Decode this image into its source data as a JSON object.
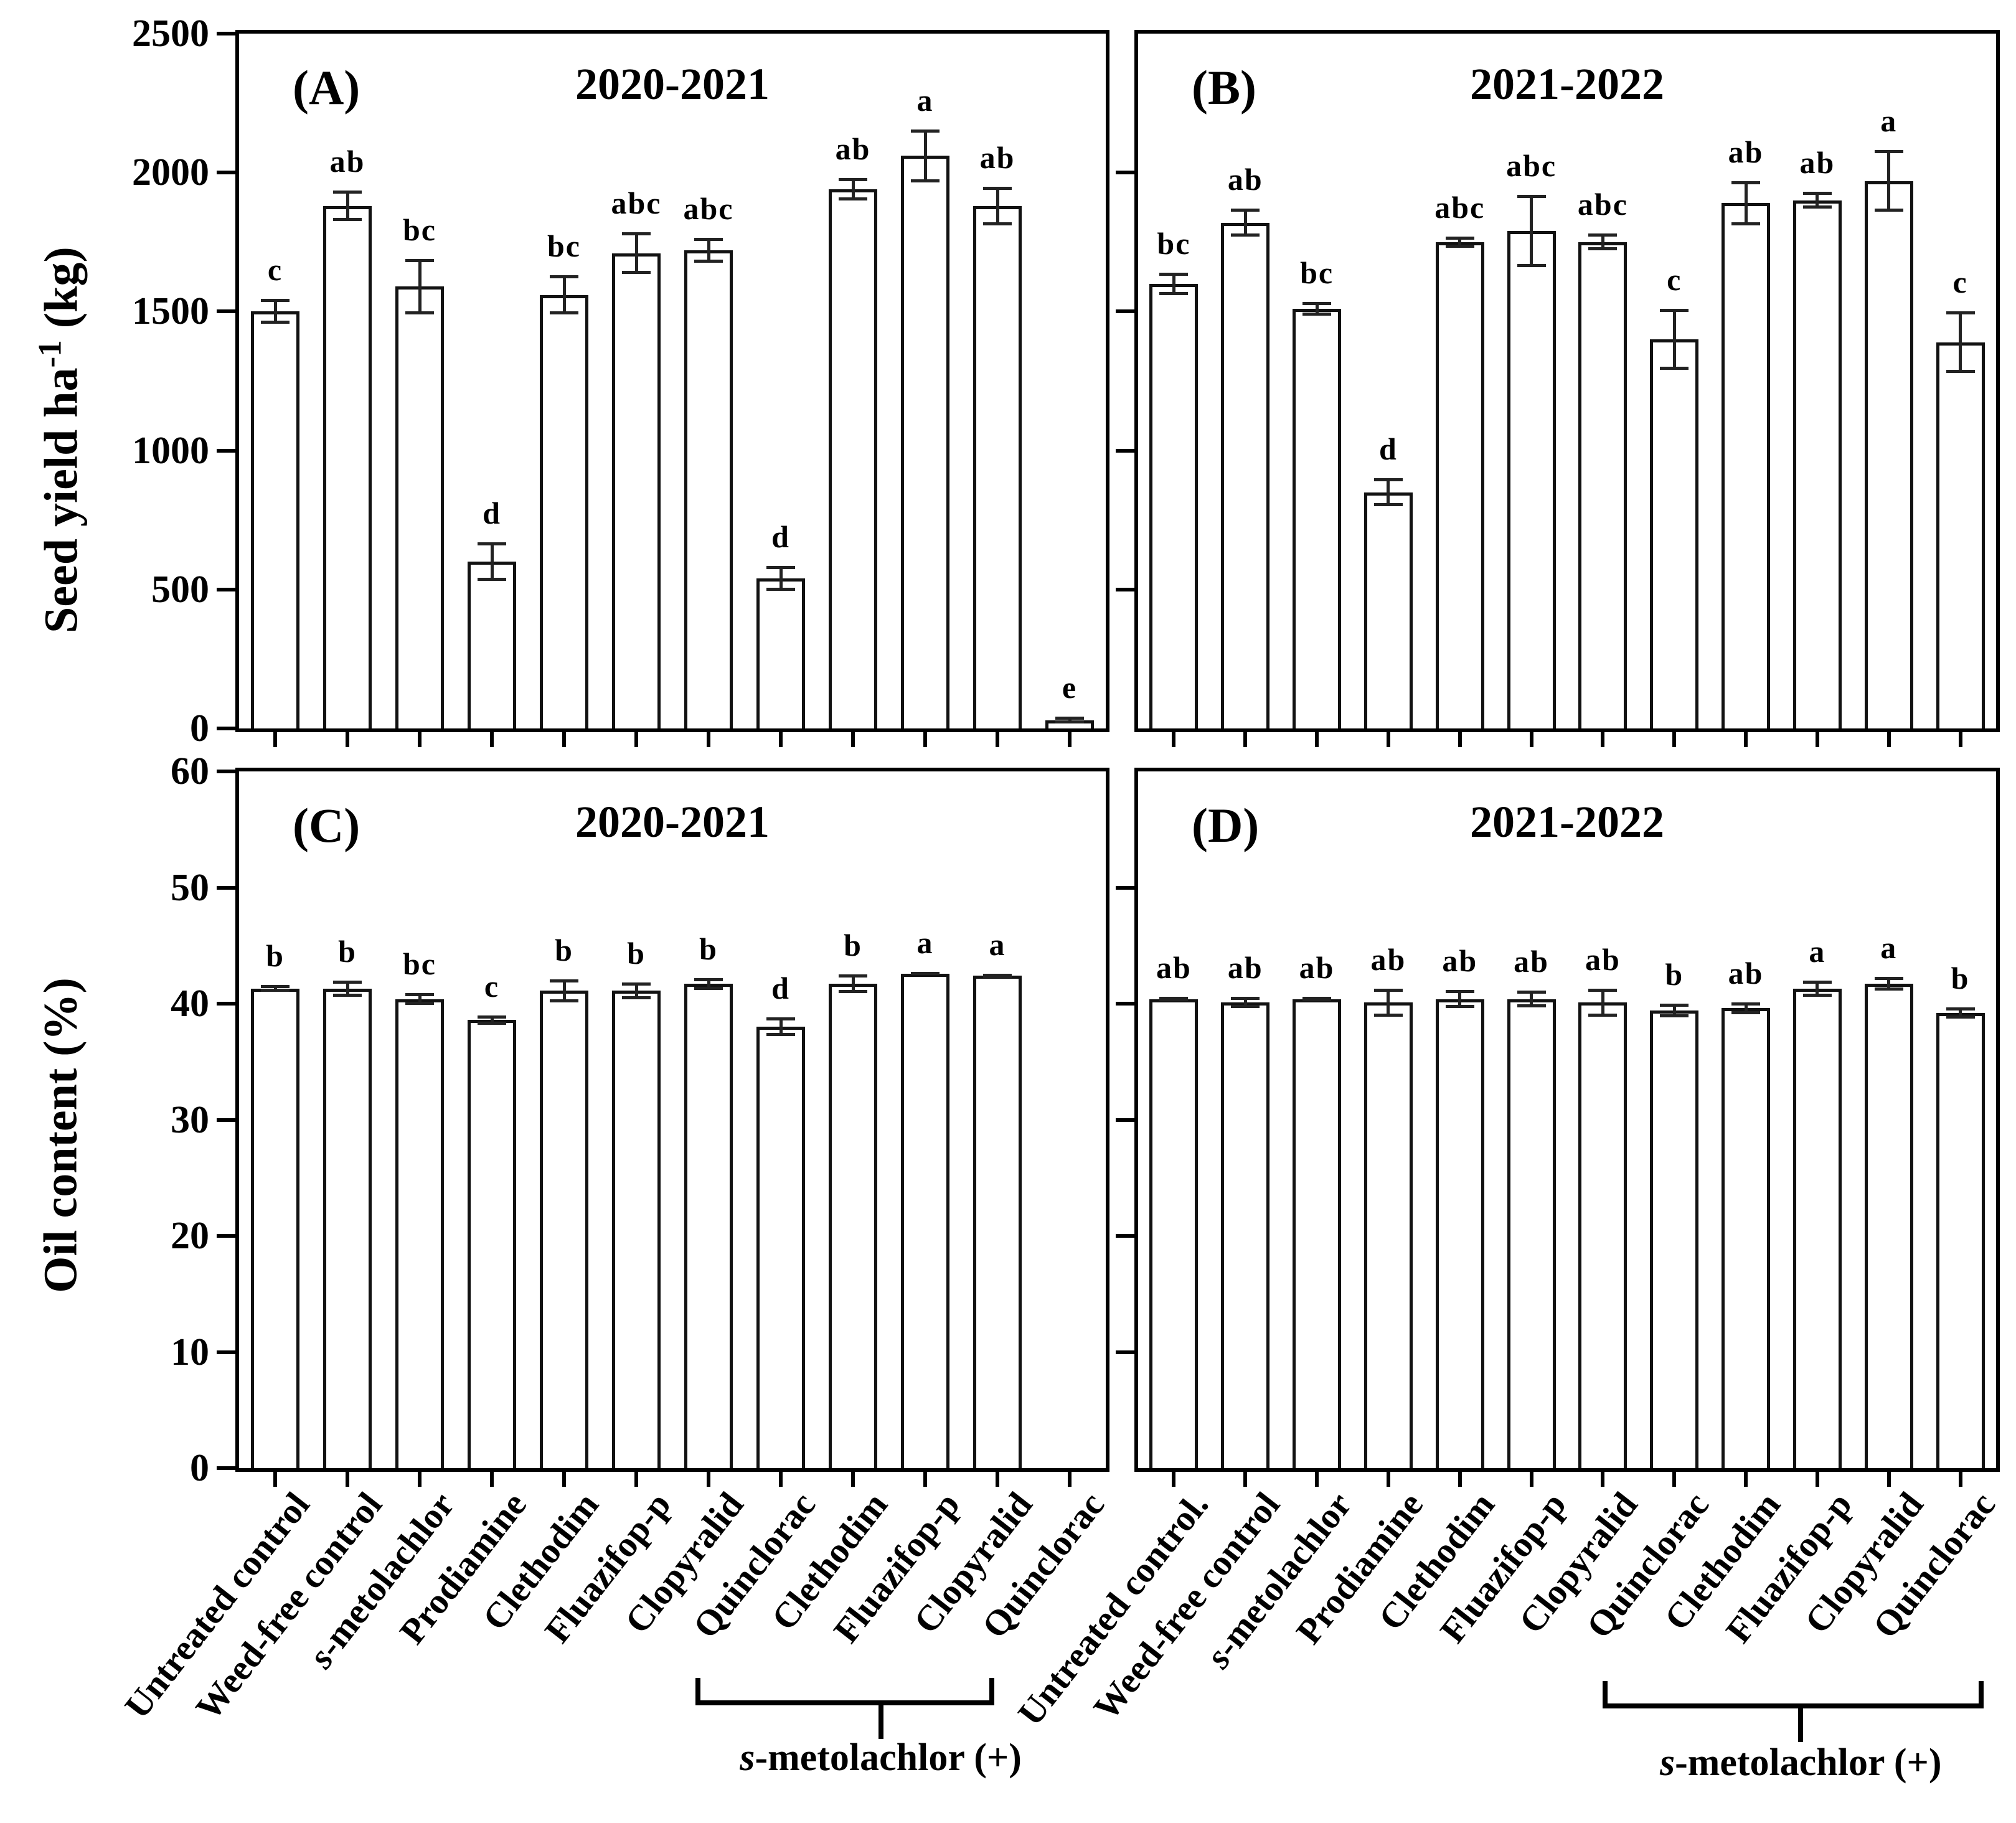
{
  "axes": {
    "seed_yield_label": {
      "main": "Seed yield ha",
      "sup": "-1",
      "unit": " (kg)"
    },
    "oil_content_label": "Oil content (%)"
  },
  "bracket": {
    "label": "s-metolachlor (+)"
  },
  "chart_data": [
    {
      "type": "bar",
      "panel_label": "(A)",
      "title": "2020-2021",
      "ylabel": "Seed yield ha-1 (kg)",
      "ylim": [
        0,
        2500
      ],
      "yticks": [
        0,
        500,
        1000,
        1500,
        2000,
        2500
      ],
      "ytick_labels_shown": true,
      "legend": "none",
      "grid": false,
      "categories": [
        "Untreated control",
        "Weed-free control",
        "s-metolachlor",
        "Prodiamine",
        "Clethodim",
        "Fluazifop-p",
        "Clopyralid",
        "Quinclorac",
        "Clethodim",
        "Fluazifop-p",
        "Clopyralid",
        "Quinclorac"
      ],
      "values": [
        1500,
        1880,
        1590,
        600,
        1560,
        1710,
        1720,
        540,
        1940,
        2060,
        1880,
        30
      ],
      "errors": [
        45,
        55,
        100,
        70,
        70,
        75,
        45,
        45,
        40,
        95,
        70,
        12
      ],
      "sig_letters": [
        "c",
        "ab",
        "bc",
        "d",
        "bc",
        "abc",
        "abc",
        "d",
        "ab",
        "a",
        "ab",
        "e"
      ]
    },
    {
      "type": "bar",
      "panel_label": "(B)",
      "title": "2021-2022",
      "ylabel": "Seed yield ha-1 (kg)",
      "ylim": [
        0,
        2500
      ],
      "yticks": [
        500,
        1000,
        1500,
        2000
      ],
      "ytick_labels_shown": false,
      "legend": "none",
      "grid": false,
      "categories": [
        "Untreated control.",
        "Weed-free control",
        "s-metolachlor",
        "Prodiamine",
        "Clethodim",
        "Fluazifop-p",
        "Clopyralid",
        "Quinclorac",
        "Clethodim",
        "Fluazifop-p",
        "Clopyralid",
        "Quinclorac"
      ],
      "values": [
        1600,
        1820,
        1510,
        850,
        1750,
        1790,
        1750,
        1400,
        1890,
        1900,
        1970,
        1390
      ],
      "errors": [
        40,
        50,
        25,
        50,
        20,
        130,
        30,
        110,
        80,
        30,
        110,
        110
      ],
      "sig_letters": [
        "bc",
        "ab",
        "bc",
        "d",
        "abc",
        "abc",
        "abc",
        "c",
        "ab",
        "ab",
        "a",
        "c"
      ]
    },
    {
      "type": "bar",
      "panel_label": "(C)",
      "title": "2020-2021",
      "ylabel": "Oil content (%)",
      "ylim": [
        0,
        60
      ],
      "yticks": [
        0,
        10,
        20,
        30,
        40,
        50,
        60
      ],
      "ytick_labels_shown": true,
      "legend": "none",
      "grid": false,
      "categories": [
        "Untreated control",
        "Weed-free control",
        "s-metolachlor",
        "Prodiamine",
        "Clethodim",
        "Fluazifop-p",
        "Clopyralid",
        "Quinclorac",
        "Clethodim",
        "Fluazifop-p",
        "Clopyralid",
        "Quinclorac"
      ],
      "values": [
        41.3,
        41.3,
        40.4,
        38.6,
        41.1,
        41.1,
        41.7,
        38.0,
        41.7,
        42.6,
        42.4,
        null
      ],
      "errors": [
        0.3,
        0.7,
        0.5,
        0.4,
        1.0,
        0.7,
        0.5,
        0.8,
        0.8,
        0.15,
        0.2,
        null
      ],
      "sig_letters": [
        "b",
        "b",
        "bc",
        "c",
        "b",
        "b",
        "b",
        "d",
        "b",
        "a",
        "a",
        ""
      ]
    },
    {
      "type": "bar",
      "panel_label": "(D)",
      "title": "2021-2022",
      "ylabel": "Oil content (%)",
      "ylim": [
        0,
        60
      ],
      "yticks": [
        10,
        20,
        30,
        40,
        50
      ],
      "ytick_labels_shown": false,
      "legend": "none",
      "grid": false,
      "categories": [
        "Untreated control.",
        "Weed-free control",
        "s-metolachlor",
        "Prodiamine",
        "Clethodim",
        "Fluazifop-p",
        "Clopyralid",
        "Quinclorac",
        "Clethodim",
        "Fluazifop-p",
        "Clopyralid",
        "Quinclorac"
      ],
      "values": [
        40.4,
        40.1,
        40.4,
        40.1,
        40.4,
        40.4,
        40.1,
        39.4,
        39.6,
        41.3,
        41.7,
        39.2
      ],
      "errors": [
        0.2,
        0.5,
        0.2,
        1.2,
        0.8,
        0.7,
        1.2,
        0.6,
        0.5,
        0.7,
        0.6,
        0.5
      ],
      "sig_letters": [
        "ab",
        "ab",
        "ab",
        "ab",
        "ab",
        "ab",
        "ab",
        "b",
        "ab",
        "a",
        "a",
        "b"
      ]
    }
  ]
}
